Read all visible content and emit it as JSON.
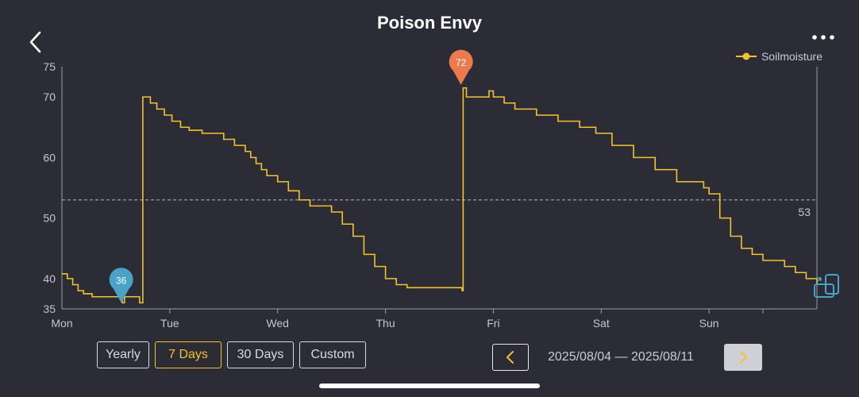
{
  "header": {
    "title": "Poison Envy"
  },
  "icons": {
    "back": "chevron-left-icon",
    "more": "more-dots-icon",
    "rotate": "rotate-landscape-icon"
  },
  "colors": {
    "background": "#2b2c35",
    "series": "#f2c230",
    "min_marker": "#4aa3c7",
    "max_marker": "#ec7a4e",
    "reference_line": "#9a9ca5",
    "accent": "#f2c230"
  },
  "chart_data": {
    "type": "line",
    "title": "Poison Envy",
    "xlabel": "",
    "ylabel": "",
    "ylim": [
      35,
      75
    ],
    "yticks": [
      35,
      40,
      50,
      60,
      70,
      75
    ],
    "xlim": [
      0,
      7
    ],
    "xtick_labels": [
      "Mon",
      "Tue",
      "Wed",
      "Thu",
      "Fri",
      "Sat",
      "Sun"
    ],
    "grid": false,
    "legend_position": "top-right",
    "reference_line": {
      "value": 53,
      "label": "53"
    },
    "markers": [
      {
        "kind": "min",
        "x": 0.55,
        "y": 36,
        "label": "36"
      },
      {
        "kind": "max",
        "x": 3.7,
        "y": 72,
        "label": "72"
      }
    ],
    "series": [
      {
        "name": "Soilmoisture",
        "x": [
          0,
          0.05,
          0.1,
          0.15,
          0.2,
          0.28,
          0.55,
          0.56,
          0.58,
          0.72,
          0.73,
          0.75,
          0.78,
          0.82,
          0.88,
          0.95,
          1.02,
          1.1,
          1.18,
          1.3,
          1.4,
          1.5,
          1.6,
          1.7,
          1.75,
          1.8,
          1.85,
          1.9,
          2.0,
          2.1,
          2.2,
          2.3,
          2.4,
          2.5,
          2.6,
          2.7,
          2.8,
          2.9,
          3.0,
          3.1,
          3.2,
          3.4,
          3.65,
          3.71,
          3.72,
          3.75,
          3.82,
          3.93,
          3.96,
          4.0,
          4.1,
          4.2,
          4.4,
          4.6,
          4.8,
          4.95,
          5.1,
          5.3,
          5.5,
          5.7,
          5.85,
          5.95,
          6.0,
          6.1,
          6.2,
          6.3,
          6.4,
          6.5,
          6.6,
          6.7,
          6.8,
          6.9,
          7.0
        ],
        "y": [
          40.8,
          40,
          39,
          38,
          37.5,
          37,
          37,
          36,
          37,
          36,
          36,
          70,
          70,
          69,
          68,
          67,
          66,
          65,
          64.5,
          64,
          64,
          63,
          62,
          61,
          60,
          59,
          58,
          57,
          56,
          54.5,
          53,
          52,
          52,
          51,
          49,
          47,
          44,
          42,
          40,
          39,
          38.5,
          38.5,
          38.5,
          38,
          71.5,
          70,
          70,
          70,
          71,
          70,
          69,
          68,
          67,
          66,
          65,
          64,
          62,
          60,
          58,
          56,
          56,
          55,
          54,
          50,
          47,
          45,
          44,
          43,
          43,
          42,
          41,
          40,
          39
        ]
      }
    ]
  },
  "controls": {
    "ranges": [
      {
        "label": "Yearly",
        "active": false
      },
      {
        "label": "7 Days",
        "active": true
      },
      {
        "label": "30 Days",
        "active": false
      },
      {
        "label": "Custom",
        "active": false
      }
    ],
    "date_range": "2025/08/04 — 2025/08/11"
  }
}
